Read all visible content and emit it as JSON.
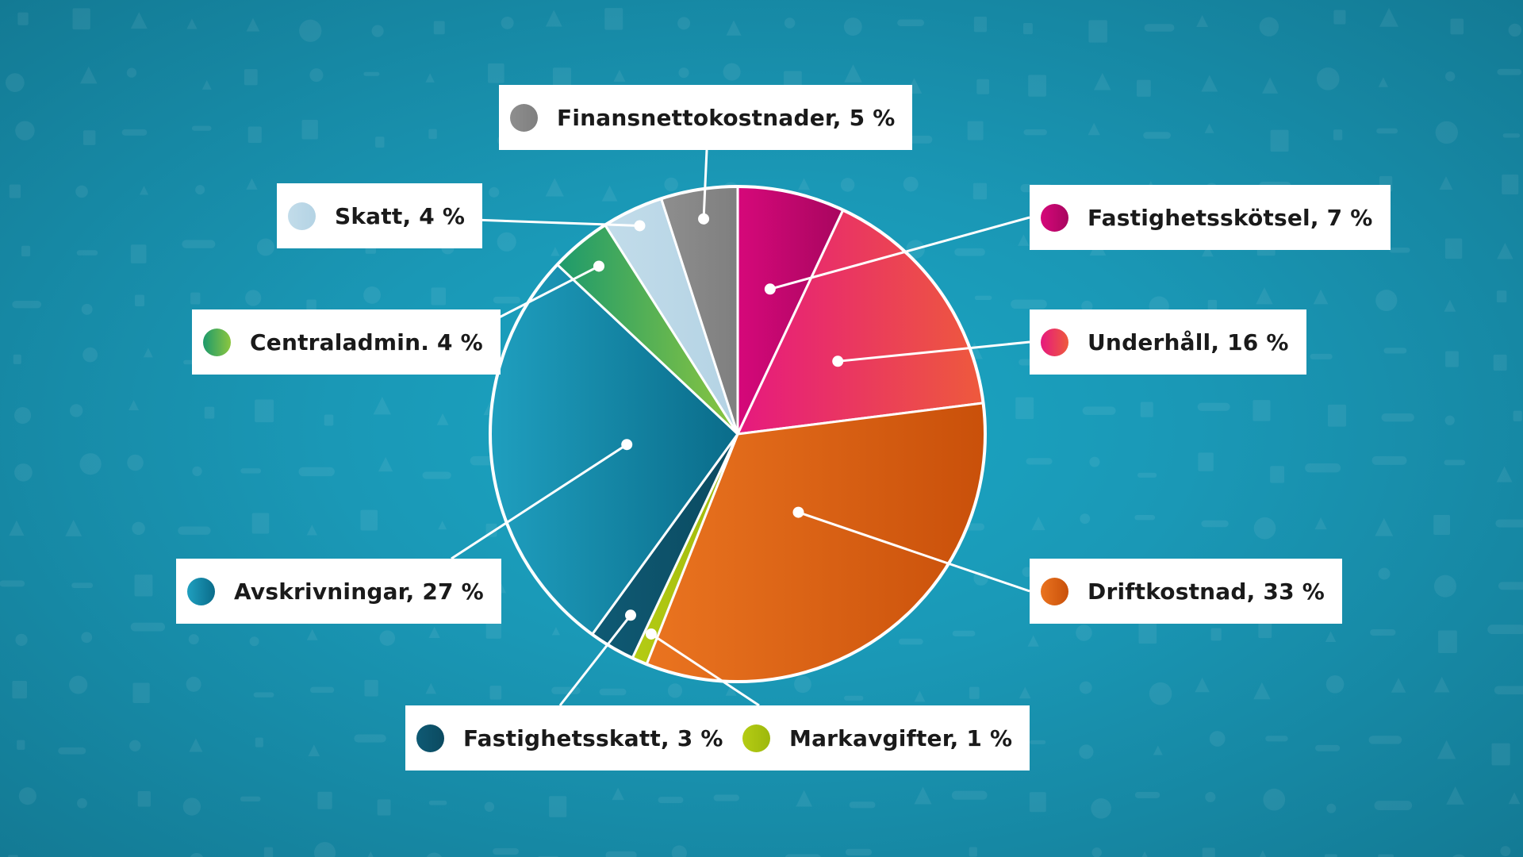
{
  "chart_data": {
    "type": "pie",
    "start_angle_deg": 0,
    "direction": "clockwise",
    "slices": [
      {
        "label": "Fastighetsskötsel",
        "value": 7,
        "text": "Fastighetsskötsel, 7 %",
        "color": "#d6087a",
        "color2": "#a8065f"
      },
      {
        "label": "Underhåll",
        "value": 16,
        "text": "Underhåll, 16 %",
        "color": "#e6197f",
        "color2": "#ee5a3c"
      },
      {
        "label": "Driftkostnad",
        "value": 33,
        "text": "Driftkostnad, 33 %",
        "color": "#ea7420",
        "color2": "#c9500a"
      },
      {
        "label": "Markavgifter",
        "value": 1,
        "text": "Markavgifter, 1 %",
        "color": "#b5cc14",
        "color2": "#9db80c"
      },
      {
        "label": "Fastighetsskatt",
        "value": 3,
        "text": "Fastighetsskatt, 3 %",
        "color": "#0f5a74",
        "color2": "#0b4a60"
      },
      {
        "label": "Avskrivningar",
        "value": 27,
        "text": "Avskrivningar, 27 %",
        "color": "#1f9fbf",
        "color2": "#0a6c8a"
      },
      {
        "label": "Centraladmin.",
        "value": 4,
        "text": "Centraladmin. 4 %",
        "color": "#1d9a6c",
        "color2": "#8cc63f"
      },
      {
        "label": "Skatt",
        "value": 4,
        "text": "Skatt, 4 %",
        "color": "#c2dcea",
        "color2": "#b4d3e4"
      },
      {
        "label": "Finansnettokostnader",
        "value": 5,
        "text": "Finansnettokostnader, 5 %",
        "color": "#8e8e8e",
        "color2": "#7f7f7f"
      }
    ]
  }
}
